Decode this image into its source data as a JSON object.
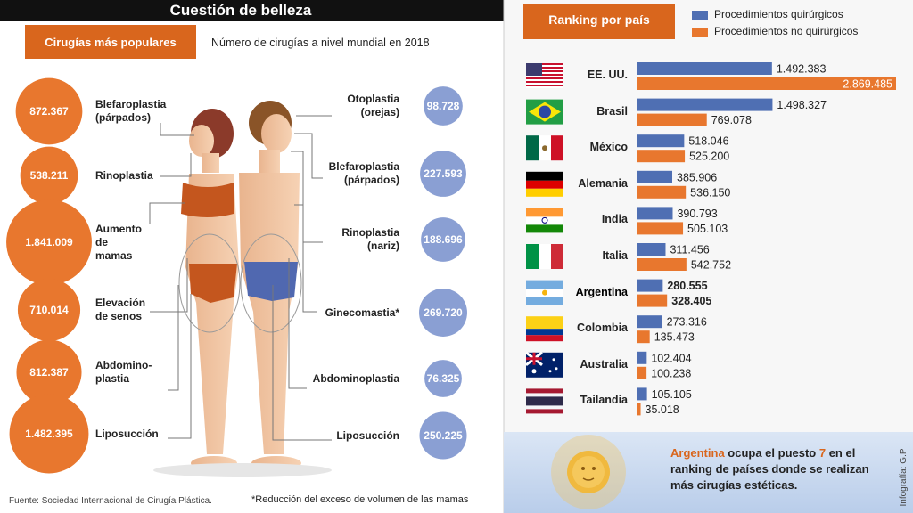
{
  "header": {
    "title": "Cuestión de belleza",
    "tab": "Cirugías más populares",
    "subtitle": "Número de cirugías a nivel mundial en 2018"
  },
  "women": {
    "labels": [
      "Blefaroplastia\n(párpados)",
      "Rinoplastia",
      "Aumento\nde\nmamas",
      "Elevación\nde senos",
      "Abdomino-\nplastia",
      "Liposucción"
    ],
    "values": [
      872367,
      538211,
      1841009,
      710014,
      812387,
      1482395
    ],
    "value_labels": [
      "872.367",
      "538.211",
      "1.841.009",
      "710.014",
      "812.387",
      "1.482.395"
    ],
    "color": "#e8772e"
  },
  "men": {
    "labels": [
      "Otoplastia\n(orejas)",
      "Blefaroplastia\n(párpados)",
      "Rinoplastia\n(nariz)",
      "Ginecomastia*",
      "Abdominoplastia",
      "Liposucción"
    ],
    "values": [
      98728,
      227593,
      188696,
      269720,
      76325,
      250225
    ],
    "value_labels": [
      "98.728",
      "227.593",
      "188.696",
      "269.720",
      "76.325",
      "250.225"
    ],
    "color": "#8a9fd3"
  },
  "footer": {
    "source": "Fuente: Sociedad Internacional de Cirugía Plástica.",
    "note": "*Reducción del exceso de volumen de las mamas"
  },
  "chart_data": {
    "type": "bar",
    "orientation": "horizontal",
    "title": "Ranking por país",
    "categories": [
      "EE. UU.",
      "Brasil",
      "México",
      "Alemania",
      "India",
      "Italia",
      "Argentina",
      "Colombia",
      "Australia",
      "Tailandia"
    ],
    "bold_categories": [
      "Argentina"
    ],
    "series": [
      {
        "name": "Procedimientos quirúrgicos",
        "color": "#4f6fb3",
        "values": [
          1492383,
          1498327,
          518046,
          385906,
          390793,
          311456,
          280555,
          273316,
          102404,
          105105
        ],
        "value_labels": [
          "1.492.383",
          "1.498.327",
          "518.046",
          "385.906",
          "390.793",
          "311.456",
          "280.555",
          "273.316",
          "102.404",
          "105.105"
        ]
      },
      {
        "name": "Procedimientos no quirúrgicos",
        "color": "#e8772e",
        "values": [
          2869485,
          769078,
          525200,
          536150,
          505103,
          542752,
          328405,
          135473,
          100238,
          35018
        ],
        "value_labels": [
          "2.869.485",
          "769.078",
          "525.200",
          "536.150",
          "505.103",
          "542.752",
          "328.405",
          "135.473",
          "100.238",
          "35.018"
        ]
      }
    ]
  },
  "callout": {
    "parts": [
      "Argentina",
      " ocupa el puesto ",
      "7",
      " en el ranking de países donde se realizan más cirugías estéticas."
    ],
    "credit": "Infografía: G.P"
  }
}
